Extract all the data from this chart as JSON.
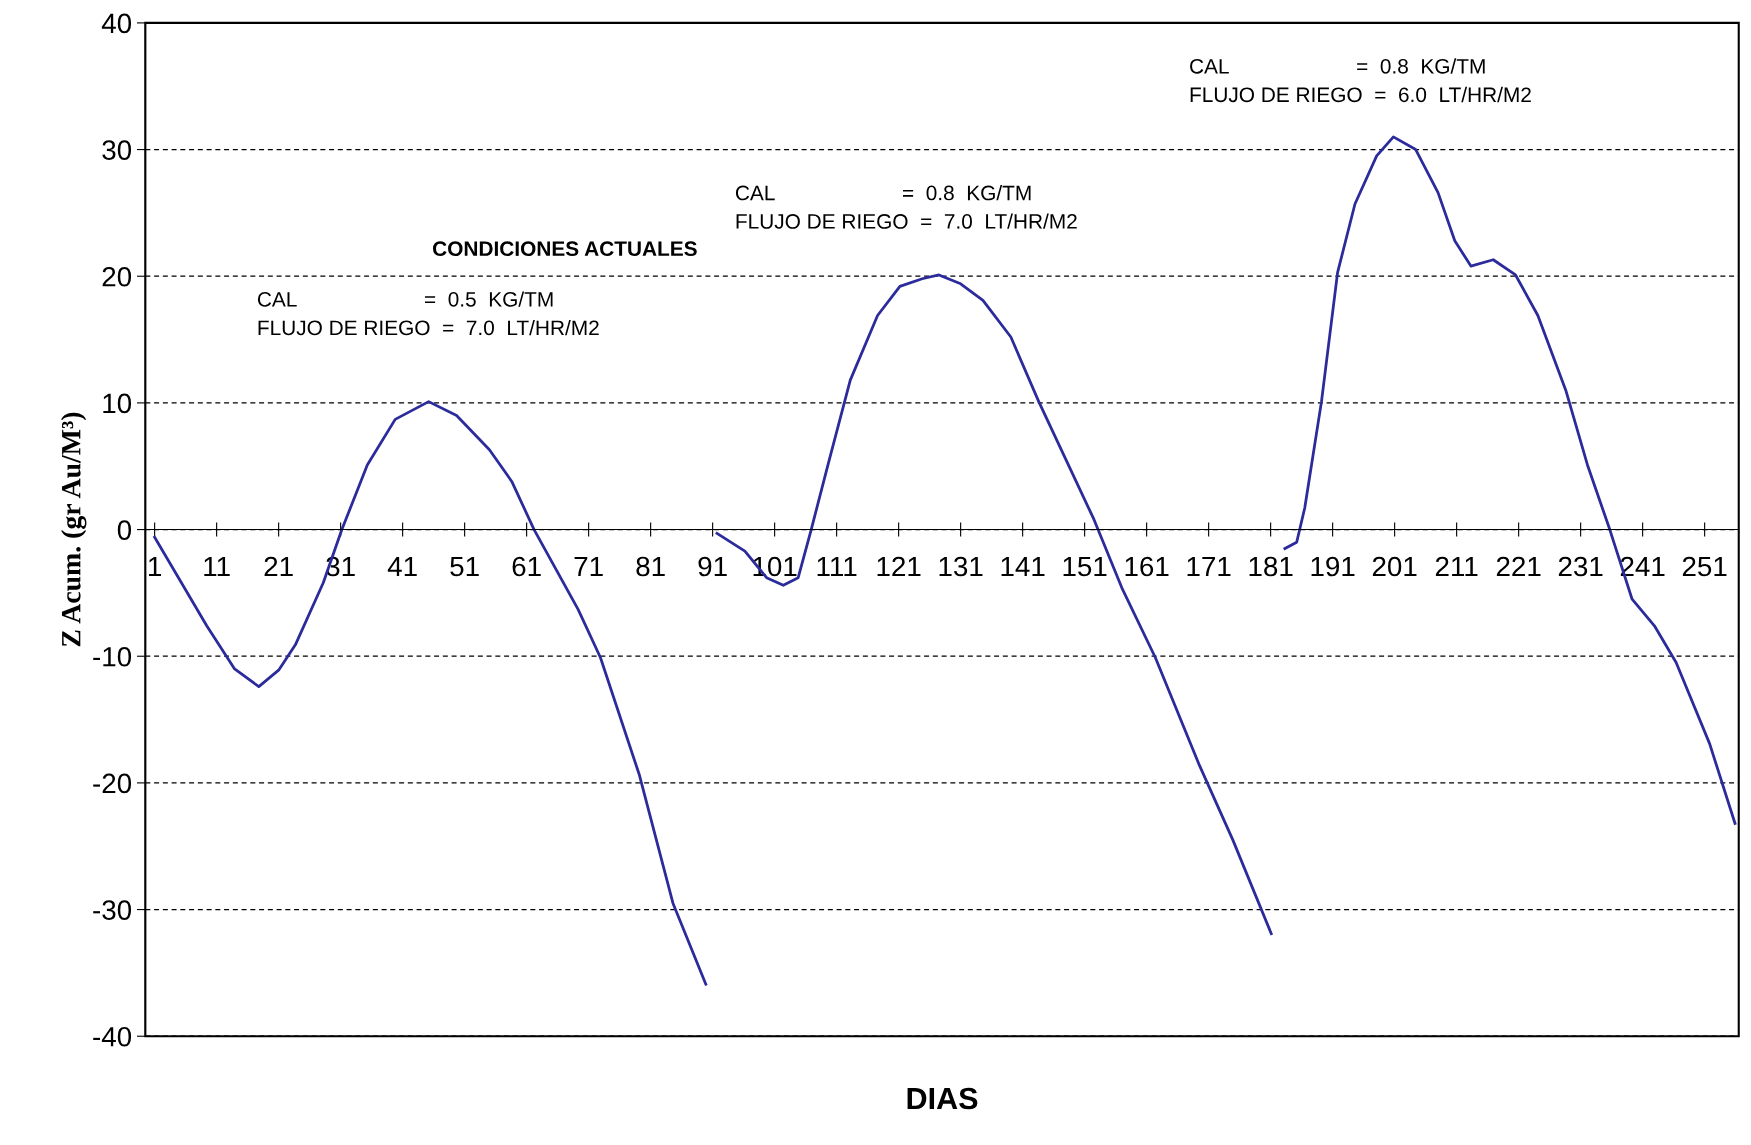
{
  "chart_data": {
    "type": "line",
    "xlabel": "DIAS",
    "ylabel": "Z Acum. (gr Au/M³)",
    "xlim": [
      -0.5,
      256.5
    ],
    "xticks": [
      1,
      11,
      21,
      31,
      41,
      51,
      61,
      71,
      81,
      91,
      101,
      111,
      121,
      131,
      141,
      151,
      161,
      171,
      181,
      191,
      201,
      211,
      221,
      231,
      241,
      251
    ],
    "ylim": [
      -40,
      40
    ],
    "yticks": [
      -40,
      -30,
      -20,
      -10,
      0,
      10,
      20,
      30,
      40
    ],
    "grid": "y",
    "line_style": "solid",
    "marker": "none",
    "series": [
      {
        "color": "#2b2b9c",
        "x": [
          1,
          9.4,
          13.9,
          17.8,
          21,
          23.7,
          28.2,
          31.2,
          35.3,
          39.8,
          45.2,
          49.7,
          55,
          58.6,
          62.2,
          69.3,
          72.9,
          79.2,
          84.6,
          89.9
        ],
        "values": [
          -0.6,
          -7.6,
          -11,
          -12.4,
          -11.1,
          -9.1,
          -4.2,
          0,
          5.1,
          8.7,
          10.1,
          9,
          6.3,
          3.8,
          0,
          -6.3,
          -10.1,
          -19.4,
          -29.5,
          -35.9
        ]
      },
      {
        "color": "#2b2b9c",
        "x": [
          91.7,
          96.2,
          99.7,
          102.4,
          104.8,
          106.9,
          109.6,
          113.2,
          117.6,
          121.2,
          124.8,
          127.5,
          131,
          134.6,
          139.1,
          143.6,
          148,
          152.5,
          157,
          162.4,
          169.5,
          174.9,
          181.1
        ],
        "values": [
          -0.3,
          -1.7,
          -3.8,
          -4.4,
          -3.8,
          0,
          5.1,
          11.8,
          16.9,
          19.2,
          19.8,
          20.1,
          19.4,
          18.1,
          15.2,
          10.1,
          5.5,
          0.8,
          -4.6,
          -10.1,
          -18.6,
          -24.5,
          -31.9
        ]
      },
      {
        "color": "#2b2b9c",
        "x": [
          183.3,
          185.2,
          186.5,
          189.2,
          191.8,
          194.6,
          198.1,
          200.8,
          204.4,
          208,
          210.7,
          213.3,
          216.9,
          220.5,
          224.1,
          228.6,
          232.1,
          235.7,
          239.3,
          242.9,
          246.4,
          251.8,
          255.9
        ],
        "values": [
          -1.5,
          -1,
          1.7,
          10.1,
          20.3,
          25.7,
          29.5,
          31,
          30,
          26.6,
          22.8,
          20.8,
          21.3,
          20.1,
          16.9,
          11,
          5.1,
          0,
          -5.5,
          -7.6,
          -10.5,
          -16.9,
          -23.2
        ]
      }
    ],
    "annotations": [
      "CONDICIONES ACTUALES",
      "CAL                      =  0.5  KG/TM\nFLUJO DE RIEGO  =  7.0  LT/HR/M2",
      "CAL                      =  0.8  KG/TM\nFLUJO DE RIEGO  =  7.0  LT/HR/M2",
      "CAL                      =  0.8  KG/TM\nFLUJO DE RIEGO  =  6.0  LT/HR/M2"
    ]
  }
}
